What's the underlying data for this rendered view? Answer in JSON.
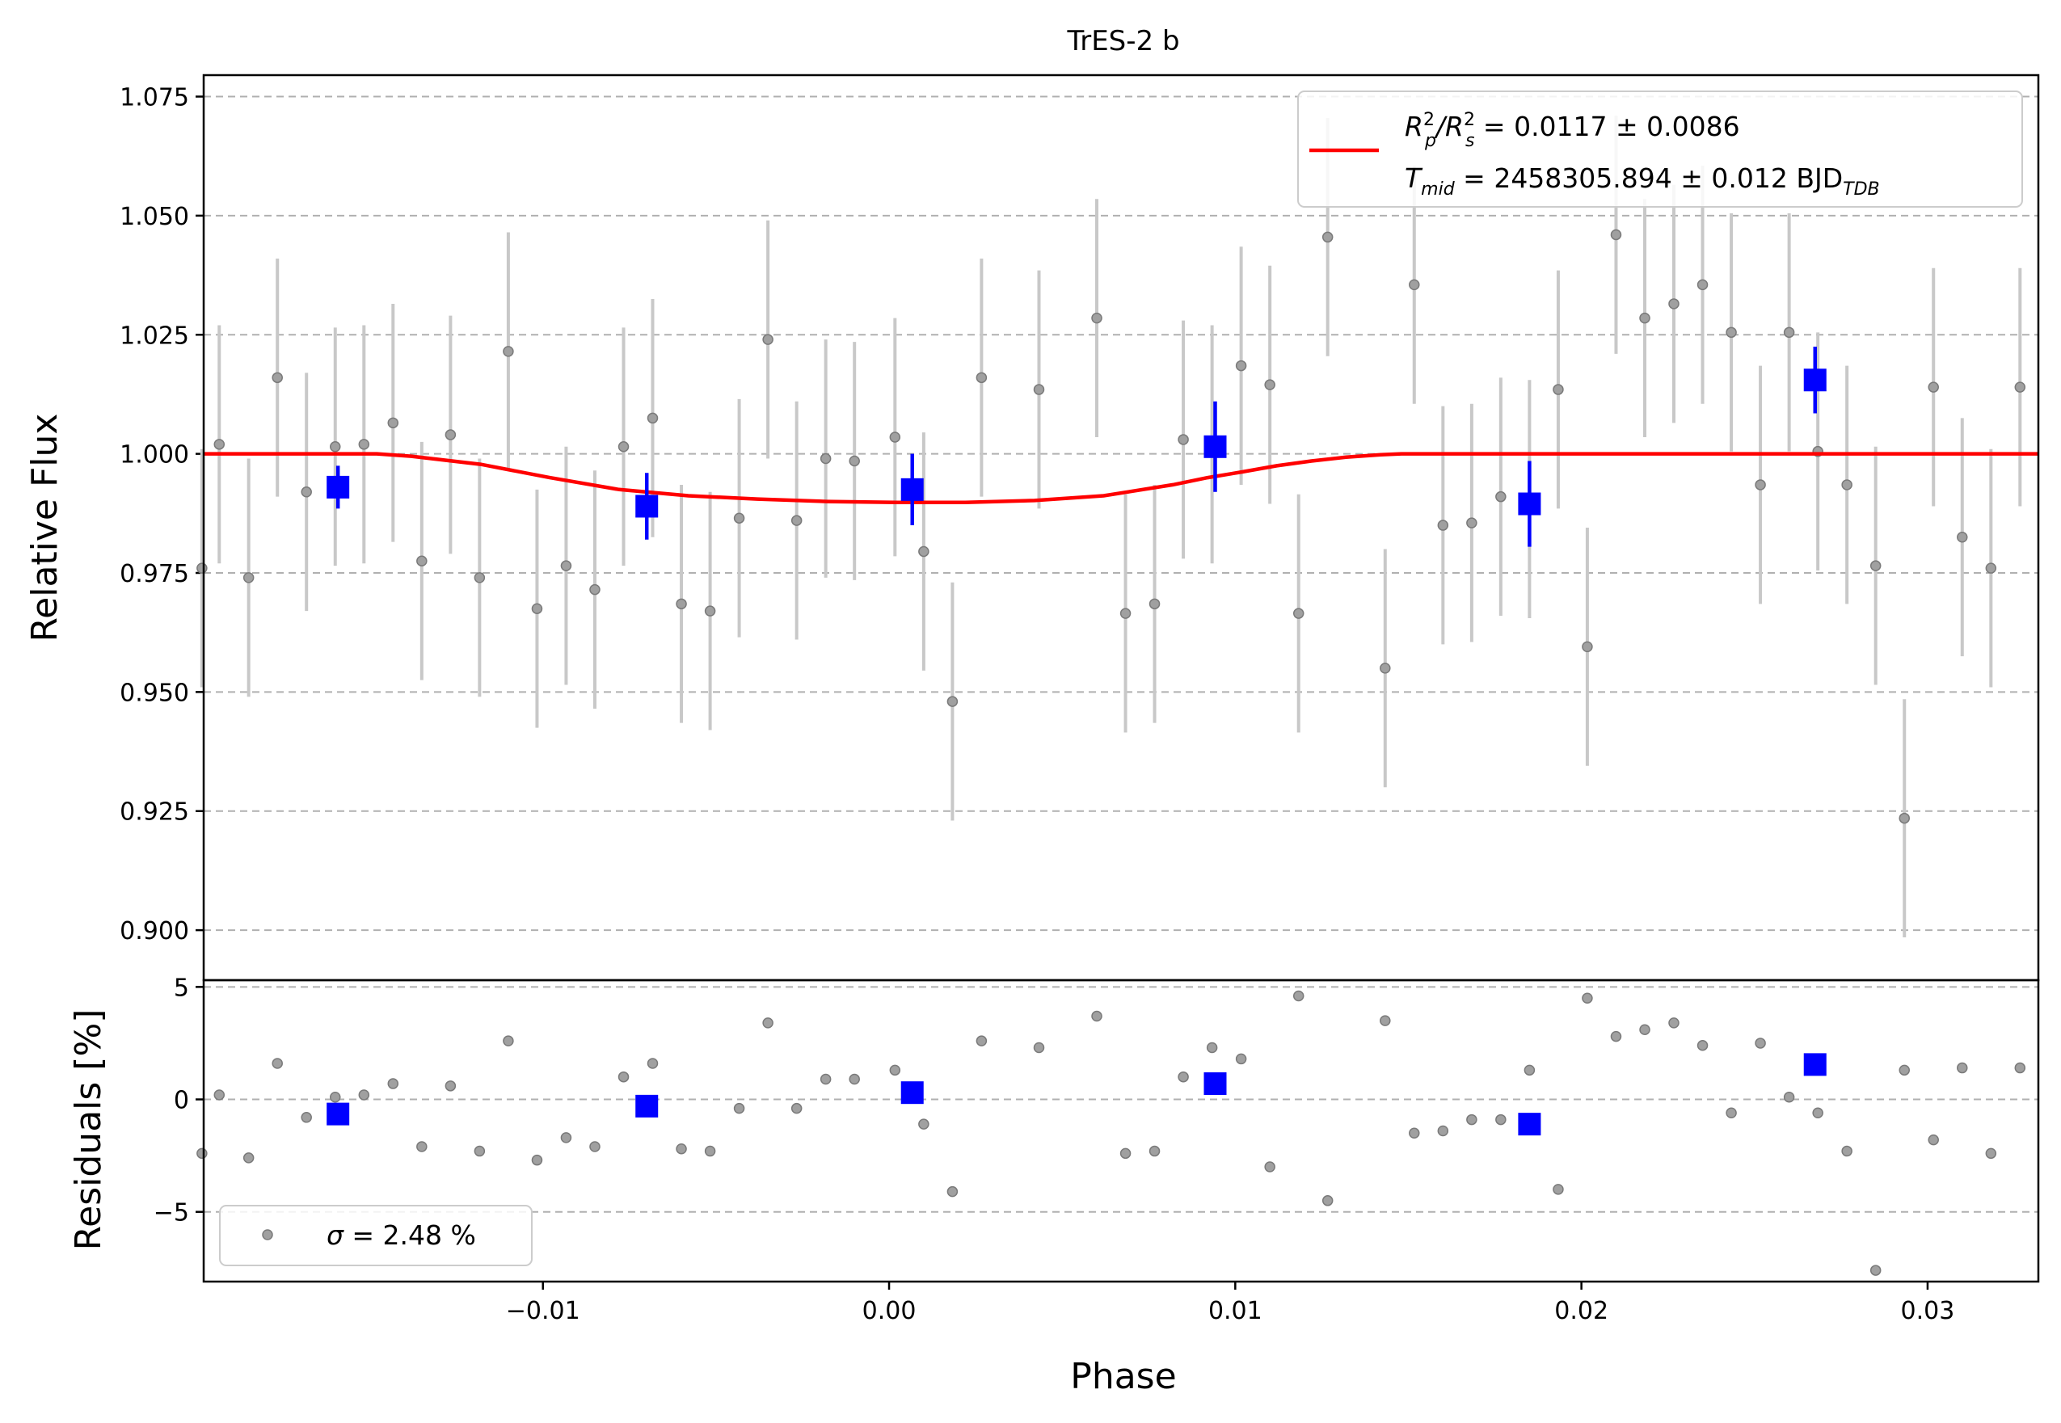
{
  "chart_data": [
    {
      "type": "scatter",
      "panel": "light-curve",
      "title": "TrES-2 b",
      "xlabel": "Phase",
      "ylabel": "Relative Flux",
      "xlim": [
        -0.0198,
        0.0332
      ],
      "ylim": [
        0.8895,
        1.0795
      ],
      "yticks": [
        0.9,
        0.925,
        0.95,
        0.975,
        1.0,
        1.025,
        1.05,
        1.075
      ],
      "ytick_labels": [
        "0.900",
        "0.925",
        "0.950",
        "0.975",
        "1.000",
        "1.025",
        "1.050",
        "1.075"
      ],
      "grid": true,
      "legend_position": "top-right",
      "legend": {
        "line1": {
          "base": "R",
          "sub1": "p",
          "sup1": "2",
          "sep": "/R",
          "sub2": "s",
          "sup2": "2",
          "value": " = 0.0117 ± 0.0086"
        },
        "line2": {
          "base": "T",
          "sub": "mid",
          "value": " = 2458305.894 ± 0.012 BJD",
          "unit_sub": "TDB"
        }
      },
      "colors": {
        "data": "#8c8c8c",
        "errorbar": "#c8c8c8",
        "binned": "#0000ff",
        "model": "#ff0000"
      },
      "data": {
        "x": [
          -0.01985,
          -0.01935,
          -0.0185,
          -0.01767,
          -0.01683,
          -0.016,
          -0.01517,
          -0.01433,
          -0.0135,
          -0.01267,
          -0.01183,
          -0.011,
          -0.01017,
          -0.00933,
          -0.0085,
          -0.00767,
          -0.00683,
          -0.006,
          -0.00517,
          -0.00433,
          -0.0035,
          -0.00267,
          -0.00183,
          -0.001,
          0.00017,
          0.001,
          0.00183,
          0.00267,
          0.00433,
          0.006,
          0.00683,
          0.00767,
          0.0085,
          0.00933,
          0.01017,
          0.011,
          0.01183,
          0.01267,
          0.01433,
          0.01517,
          0.016,
          0.01683,
          0.01767,
          0.0185,
          0.01933,
          0.02017,
          0.021,
          0.02183,
          0.02267,
          0.0235,
          0.02433,
          0.02517,
          0.026,
          0.02683,
          0.02767,
          0.0285,
          0.02933,
          0.03017,
          0.031,
          0.03183,
          0.03267
        ],
        "y": [
          0.976,
          1.002,
          0.974,
          1.016,
          0.992,
          1.0015,
          1.002,
          1.0065,
          0.9775,
          1.004,
          0.974,
          1.0215,
          0.9675,
          0.9765,
          0.9715,
          1.0015,
          1.0075,
          0.9685,
          0.967,
          0.9865,
          1.024,
          0.986,
          0.999,
          0.9985,
          1.0035,
          0.9795,
          0.948,
          1.016,
          1.0135,
          1.0285,
          0.9665,
          0.9685,
          1.003,
          1.002,
          1.0185,
          1.0145,
          0.9665,
          1.0455,
          0.955,
          1.0355,
          0.985,
          0.9855,
          0.991,
          0.9905,
          1.0135,
          0.9595,
          1.046,
          1.0285,
          1.0315,
          1.0355,
          1.0255,
          0.9935,
          1.0255,
          1.0005,
          0.9935,
          0.9765,
          0.9235,
          1.014,
          0.9825,
          0.976,
          1.014
        ],
        "yerr": 0.025
      },
      "binned": {
        "x": [
          -0.01592,
          -0.007,
          0.00067,
          0.00942,
          0.0185,
          0.02675
        ],
        "y": [
          0.993,
          0.989,
          0.9925,
          1.0015,
          0.9895,
          1.0155
        ],
        "yerr": [
          0.0045,
          0.007,
          0.0075,
          0.0095,
          0.009,
          0.007
        ]
      },
      "model": {
        "x": [
          -0.0198,
          -0.0148,
          -0.0138,
          -0.0118,
          -0.0098,
          -0.0078,
          -0.0058,
          -0.0038,
          -0.0018,
          0.0002,
          0.0022,
          0.0042,
          0.0062,
          0.0082,
          0.0092,
          0.0102,
          0.0112,
          0.0122,
          0.0132,
          0.0142,
          0.0148,
          0.0332
        ],
        "y": [
          1.0,
          1.0,
          0.9995,
          0.9978,
          0.995,
          0.9925,
          0.9912,
          0.9905,
          0.99,
          0.9898,
          0.9898,
          0.9902,
          0.9912,
          0.9935,
          0.995,
          0.9962,
          0.9975,
          0.9985,
          0.9993,
          0.9998,
          1.0,
          1.0
        ]
      }
    },
    {
      "type": "scatter",
      "panel": "residuals",
      "xlabel": "Phase",
      "ylabel": "Residuals [%]",
      "xlim": [
        -0.0198,
        0.0332
      ],
      "ylim": [
        -8.1,
        5.3
      ],
      "xticks": [
        -0.01,
        0.0,
        0.01,
        0.02,
        0.03
      ],
      "xtick_labels": [
        "−0.01",
        "0.00",
        "0.01",
        "0.02",
        "0.03"
      ],
      "yticks": [
        -5,
        0,
        5
      ],
      "ytick_labels": [
        "−5",
        "0",
        "5"
      ],
      "grid": true,
      "legend_position": "bottom-left",
      "legend": {
        "symbol": "σ",
        "value": " = 2.48 %"
      },
      "residuals": {
        "x": [
          -0.01985,
          -0.01935,
          -0.0185,
          -0.01767,
          -0.01683,
          -0.016,
          -0.01517,
          -0.01433,
          -0.0135,
          -0.01267,
          -0.01183,
          -0.011,
          -0.01017,
          -0.00933,
          -0.0085,
          -0.00767,
          -0.00683,
          -0.006,
          -0.00517,
          -0.00433,
          -0.0035,
          -0.00267,
          -0.00183,
          -0.001,
          0.00017,
          0.001,
          0.00183,
          0.00267,
          0.00433,
          0.006,
          0.00683,
          0.00767,
          0.0085,
          0.00933,
          0.01017,
          0.011,
          0.01183,
          0.01267,
          0.01433,
          0.01517,
          0.016,
          0.01683,
          0.01767,
          0.0185,
          0.01933,
          0.02017,
          0.021,
          0.02183,
          0.02267,
          0.0235,
          0.02433,
          0.02517,
          0.026,
          0.02683,
          0.02767,
          0.0285,
          0.02933,
          0.03017,
          0.031,
          0.03183,
          0.03267
        ],
        "y": [
          -2.4,
          0.2,
          -2.6,
          1.6,
          -0.8,
          0.1,
          0.2,
          0.7,
          -2.1,
          0.6,
          -2.3,
          2.6,
          -2.7,
          -1.7,
          -2.1,
          1.0,
          1.6,
          -2.2,
          -2.3,
          -0.4,
          3.4,
          -0.4,
          0.9,
          0.9,
          1.3,
          -1.1,
          -4.1,
          2.6,
          2.3,
          3.7,
          -2.4,
          -2.3,
          1.0,
          2.3,
          1.8,
          -3.0,
          4.6,
          -4.5,
          3.5,
          -1.5,
          -1.4,
          -0.9,
          -0.9,
          1.3,
          -4.0,
          4.5,
          2.8,
          3.1,
          3.4,
          2.4,
          -0.6,
          2.5,
          0.1,
          -0.6,
          -2.3,
          -7.6,
          1.3,
          -1.8,
          1.4,
          -2.4,
          1.4
        ]
      },
      "binned": {
        "x": [
          -0.01592,
          -0.007,
          0.00067,
          0.00942,
          0.0185,
          0.02675
        ],
        "y": [
          -0.65,
          -0.3,
          0.3,
          0.7,
          -1.1,
          1.55
        ]
      }
    }
  ]
}
